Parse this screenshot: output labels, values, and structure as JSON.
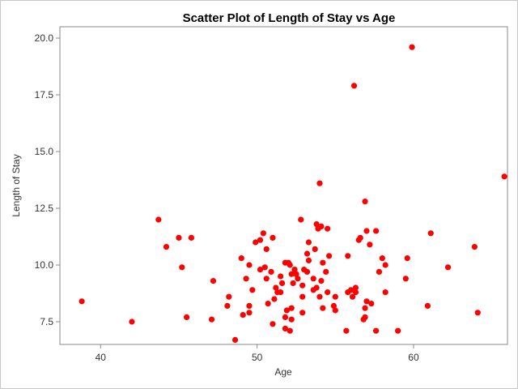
{
  "chart_data": {
    "type": "scatter",
    "title": "Scatter Plot of Length of Stay vs Age",
    "xlabel": "Age",
    "ylabel": "Length of Stay",
    "xlim": [
      37.4,
      66.0
    ],
    "ylim": [
      6.5,
      20.5
    ],
    "xticks": [
      40,
      50,
      60
    ],
    "yticks": [
      7.5,
      10.0,
      12.5,
      15.0,
      17.5,
      20.0
    ],
    "xtick_labels": [
      "40",
      "50",
      "60"
    ],
    "ytick_labels": [
      "7.5",
      "10.0",
      "12.5",
      "15.0",
      "17.5",
      "20.0"
    ],
    "marker_color": "#ff0000",
    "grid": false,
    "points": [
      [
        38.8,
        8.4
      ],
      [
        42.0,
        7.5
      ],
      [
        43.7,
        12.0
      ],
      [
        44.2,
        10.8
      ],
      [
        45.0,
        11.2
      ],
      [
        45.2,
        9.9
      ],
      [
        45.8,
        11.2
      ],
      [
        45.5,
        7.7
      ],
      [
        47.2,
        9.3
      ],
      [
        47.1,
        7.6
      ],
      [
        48.2,
        8.6
      ],
      [
        48.1,
        8.2
      ],
      [
        48.6,
        6.7
      ],
      [
        49.0,
        10.3
      ],
      [
        49.1,
        7.8
      ],
      [
        49.3,
        9.4
      ],
      [
        49.5,
        10.0
      ],
      [
        49.5,
        7.9
      ],
      [
        49.5,
        8.2
      ],
      [
        49.7,
        8.9
      ],
      [
        49.9,
        11.0
      ],
      [
        50.2,
        11.1
      ],
      [
        50.2,
        9.8
      ],
      [
        50.4,
        11.4
      ],
      [
        50.5,
        9.9
      ],
      [
        50.6,
        10.7
      ],
      [
        50.6,
        9.4
      ],
      [
        50.7,
        8.3
      ],
      [
        50.9,
        9.7
      ],
      [
        51.0,
        11.2
      ],
      [
        51.0,
        7.4
      ],
      [
        51.1,
        8.5
      ],
      [
        51.2,
        9.0
      ],
      [
        51.3,
        8.8
      ],
      [
        51.5,
        9.5
      ],
      [
        51.5,
        8.8
      ],
      [
        51.6,
        9.2
      ],
      [
        51.8,
        10.1
      ],
      [
        51.8,
        7.7
      ],
      [
        51.8,
        7.2
      ],
      [
        51.9,
        8.0
      ],
      [
        52.0,
        10.1
      ],
      [
        52.1,
        10.0
      ],
      [
        52.1,
        7.1
      ],
      [
        52.2,
        9.6
      ],
      [
        52.2,
        7.6
      ],
      [
        52.2,
        8.1
      ],
      [
        52.3,
        9.2
      ],
      [
        52.4,
        9.8
      ],
      [
        52.5,
        9.6
      ],
      [
        52.6,
        9.4
      ],
      [
        52.8,
        12.0
      ],
      [
        52.9,
        9.1
      ],
      [
        52.9,
        8.6
      ],
      [
        52.9,
        7.9
      ],
      [
        53.0,
        9.8
      ],
      [
        53.2,
        9.7
      ],
      [
        53.2,
        10.5
      ],
      [
        53.3,
        10.2
      ],
      [
        53.3,
        11.0
      ],
      [
        53.6,
        8.9
      ],
      [
        53.6,
        9.4
      ],
      [
        53.7,
        10.7
      ],
      [
        53.8,
        11.8
      ],
      [
        53.8,
        9.0
      ],
      [
        53.9,
        11.6
      ],
      [
        54.0,
        8.6
      ],
      [
        54.0,
        13.6
      ],
      [
        54.1,
        11.7
      ],
      [
        54.1,
        9.3
      ],
      [
        54.2,
        8.1
      ],
      [
        54.2,
        10.1
      ],
      [
        54.4,
        9.7
      ],
      [
        54.5,
        11.6
      ],
      [
        54.5,
        8.8
      ],
      [
        54.6,
        10.4
      ],
      [
        54.9,
        8.2
      ],
      [
        55.0,
        8.0
      ],
      [
        55.0,
        8.6
      ],
      [
        55.7,
        7.1
      ],
      [
        55.8,
        10.4
      ],
      [
        55.8,
        8.8
      ],
      [
        56.0,
        8.9
      ],
      [
        56.2,
        17.9
      ],
      [
        56.1,
        8.6
      ],
      [
        56.3,
        9.0
      ],
      [
        56.3,
        8.8
      ],
      [
        56.5,
        11.1
      ],
      [
        56.6,
        11.2
      ],
      [
        56.8,
        7.6
      ],
      [
        56.9,
        12.8
      ],
      [
        56.9,
        7.7
      ],
      [
        56.9,
        8.1
      ],
      [
        57.0,
        8.4
      ],
      [
        57.0,
        11.5
      ],
      [
        57.2,
        10.9
      ],
      [
        57.3,
        8.3
      ],
      [
        57.6,
        11.5
      ],
      [
        57.6,
        7.1
      ],
      [
        57.8,
        9.7
      ],
      [
        58.0,
        10.3
      ],
      [
        58.2,
        10.0
      ],
      [
        58.2,
        8.8
      ],
      [
        59.0,
        7.1
      ],
      [
        59.5,
        9.4
      ],
      [
        59.6,
        10.3
      ],
      [
        59.9,
        19.6
      ],
      [
        60.9,
        8.2
      ],
      [
        61.1,
        11.4
      ],
      [
        62.2,
        9.9
      ],
      [
        63.9,
        10.8
      ],
      [
        64.1,
        7.9
      ],
      [
        65.8,
        13.9
      ]
    ]
  }
}
